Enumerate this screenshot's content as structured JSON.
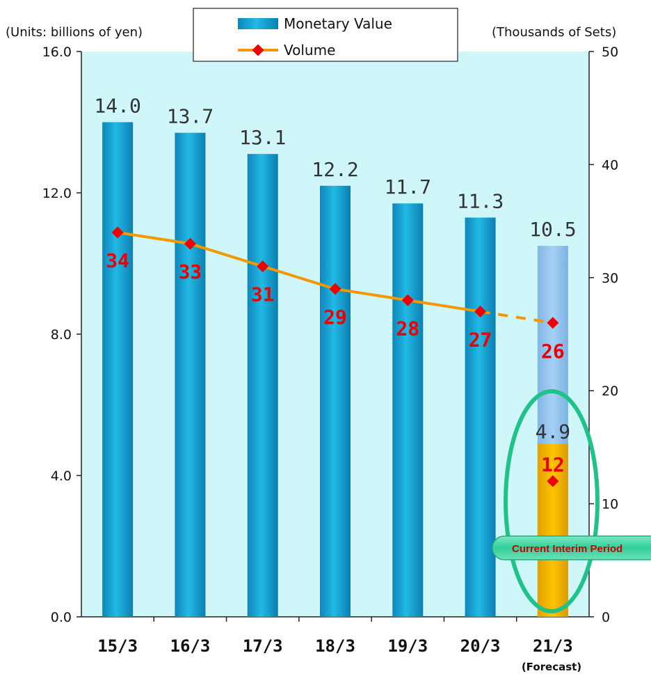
{
  "chart_data": {
    "type": "bar",
    "categories": [
      "15/3",
      "16/3",
      "17/3",
      "18/3",
      "19/3",
      "20/3",
      "21/3"
    ],
    "category_note": "(Forecast)",
    "series": [
      {
        "name": "Monetary Value",
        "type": "bar",
        "axis": "left",
        "values": [
          14.0,
          13.7,
          13.1,
          12.2,
          11.7,
          11.3,
          10.5
        ],
        "labels": [
          "14.0",
          "13.7",
          "13.1",
          "12.2",
          "11.7",
          "11.3",
          "10.5"
        ],
        "color": "#1aa3d4"
      },
      {
        "name": "Volume",
        "type": "line",
        "axis": "right",
        "values": [
          34,
          33,
          31,
          29,
          28,
          27,
          26
        ],
        "labels": [
          "34",
          "33",
          "31",
          "29",
          "28",
          "27",
          "26"
        ],
        "color": "#f39800",
        "marker_color": "#ee0000"
      }
    ],
    "interim": {
      "label": "Current Interim Period",
      "value": 4.9,
      "value_label": "4.9",
      "volume": 12,
      "volume_label": "12",
      "color": "#f0b400"
    },
    "forecast_bar_color": "#90c3ee",
    "left_axis": {
      "unit": "(Units: billions of yen)",
      "ylim": [
        0,
        16
      ],
      "ticks": [
        "0.0",
        "4.0",
        "8.0",
        "12.0",
        "16.0"
      ]
    },
    "right_axis": {
      "unit": "(Thousands of Sets)",
      "ylim": [
        0,
        50
      ],
      "ticks": [
        "0",
        "10",
        "20",
        "30",
        "40",
        "50"
      ]
    },
    "legend": {
      "position": "top-center"
    },
    "plot_background": "#cff6f8",
    "grid": false
  }
}
